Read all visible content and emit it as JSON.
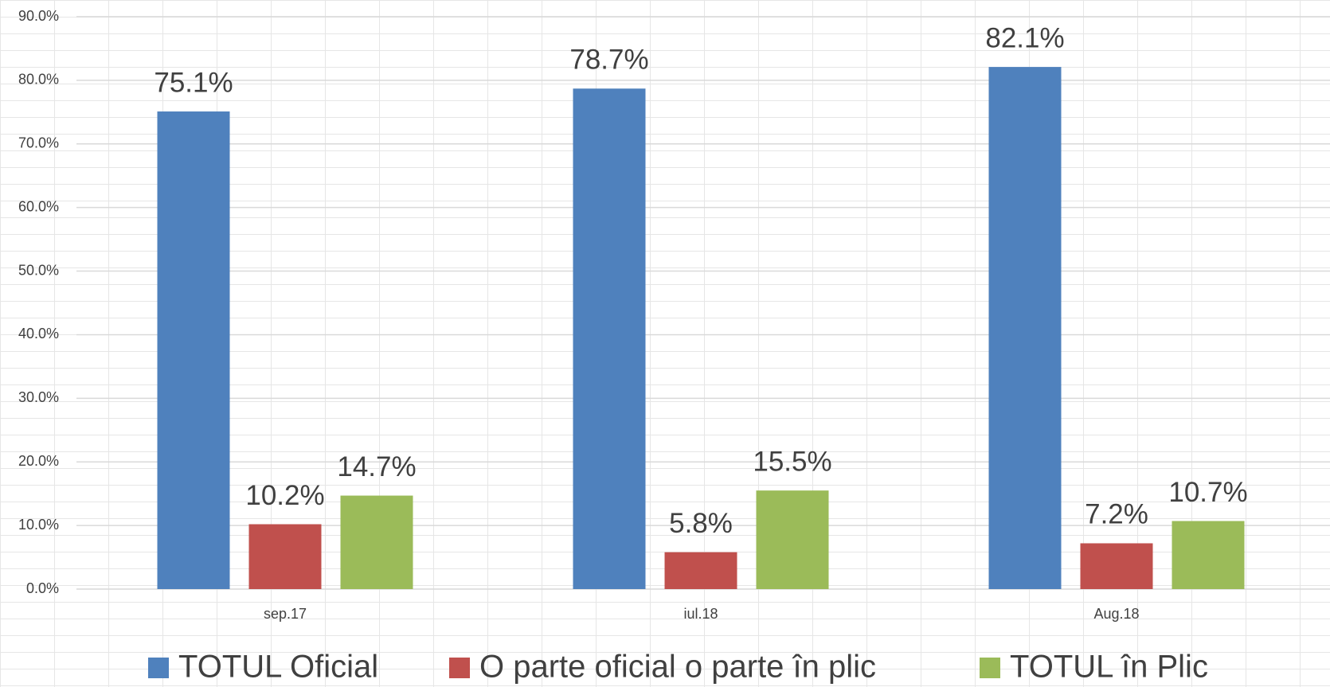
{
  "chart_data": {
    "type": "bar",
    "categories": [
      "sep.17",
      "iul.18",
      "Aug.18"
    ],
    "series": [
      {
        "name": "TOTUL Oficial",
        "color": "#4f81bd",
        "values": [
          75.1,
          78.7,
          82.1
        ],
        "value_labels": [
          "75.1%",
          "78.7%",
          "82.1%"
        ]
      },
      {
        "name": "O parte oficial o parte în plic",
        "color": "#c0504d",
        "values": [
          10.2,
          5.8,
          7.2
        ],
        "value_labels": [
          "10.2%",
          "5.8%",
          "7.2%"
        ]
      },
      {
        "name": "TOTUL în Plic",
        "color": "#9bbb59",
        "values": [
          14.7,
          15.5,
          10.7
        ],
        "value_labels": [
          "14.7%",
          "15.5%",
          "10.7%"
        ]
      }
    ],
    "ylim": [
      0,
      90
    ],
    "yticks": [
      {
        "value": 0,
        "label": "0.0%"
      },
      {
        "value": 10,
        "label": "10.0%"
      },
      {
        "value": 20,
        "label": "20.0%"
      },
      {
        "value": 30,
        "label": "30.0%"
      },
      {
        "value": 40,
        "label": "40.0%"
      },
      {
        "value": 50,
        "label": "50.0%"
      },
      {
        "value": 60,
        "label": "60.0%"
      },
      {
        "value": 70,
        "label": "70.0%"
      },
      {
        "value": 80,
        "label": "80.0%"
      },
      {
        "value": 90,
        "label": "90.0%"
      }
    ],
    "grid": true,
    "legend": "bottom"
  }
}
